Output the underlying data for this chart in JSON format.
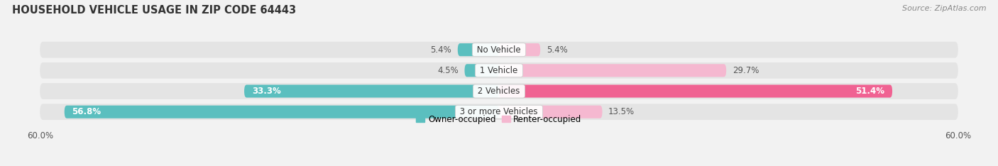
{
  "title": "HOUSEHOLD VEHICLE USAGE IN ZIP CODE 64443",
  "source": "Source: ZipAtlas.com",
  "categories": [
    "No Vehicle",
    "1 Vehicle",
    "2 Vehicles",
    "3 or more Vehicles"
  ],
  "owner_values": [
    5.4,
    4.5,
    33.3,
    56.8
  ],
  "renter_values": [
    5.4,
    29.7,
    51.4,
    13.5
  ],
  "owner_color": "#5bbfbf",
  "renter_color_light": "#f5b8d0",
  "renter_color_dark": "#f06292",
  "owner_label": "Owner-occupied",
  "renter_label": "Renter-occupied",
  "axis_max": 60.0,
  "bg_color": "#f2f2f2",
  "row_bg_color": "#e4e4e4",
  "title_fontsize": 10.5,
  "source_fontsize": 8,
  "label_fontsize": 8.5,
  "bar_height": 0.62
}
